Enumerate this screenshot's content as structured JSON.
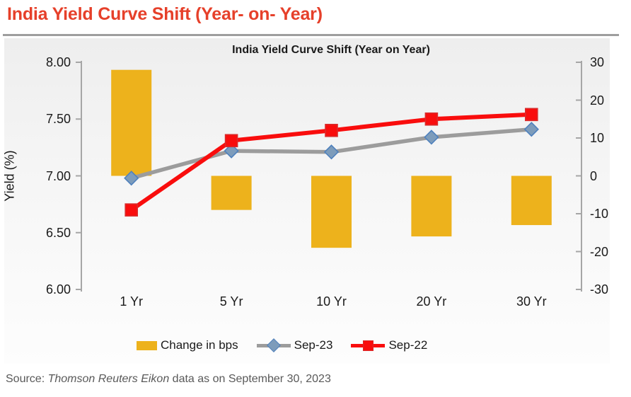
{
  "page": {
    "main_title": "India Yield Curve Shift (Year- on- Year)",
    "source_prefix": "Source: ",
    "source_italic": "Thomson Reuters Eikon",
    "source_suffix": " data as on September 30, 2023"
  },
  "chart_data": {
    "type": "combo_bar_line",
    "title": "India Yield Curve Shift (Year on Year)",
    "categories": [
      "1 Yr",
      "5 Yr",
      "10 Yr",
      "20 Yr",
      "30 Yr"
    ],
    "bar_series": {
      "name": "Change in bps",
      "axis": "right",
      "values": [
        28,
        -9,
        -19,
        -16,
        -13
      ],
      "color": "#EDB21C"
    },
    "series": [
      {
        "name": "Sep-23",
        "axis": "left",
        "values": [
          6.98,
          7.22,
          7.21,
          7.34,
          7.41
        ],
        "color": "#9C9C9C",
        "marker": "diamond",
        "marker_fill": "#7D9CBB",
        "marker_stroke": "#4F81BD"
      },
      {
        "name": "Sep-22",
        "axis": "left",
        "values": [
          6.7,
          7.31,
          7.4,
          7.5,
          7.54
        ],
        "color": "#F90D0D",
        "marker": "square",
        "marker_fill": "#F90D0D",
        "marker_stroke": "#D92B2B"
      }
    ],
    "left_axis": {
      "label": "Yield (%)",
      "min": 6.0,
      "max": 8.0,
      "ticks": [
        "8.00",
        "7.50",
        "7.00",
        "6.50",
        "6.00"
      ]
    },
    "right_axis": {
      "min": -30,
      "max": 30,
      "ticks": [
        "30",
        "20",
        "10",
        "0",
        "-10",
        "-20",
        "-30"
      ]
    },
    "legend_position": "bottom",
    "grid": false,
    "axis_color": "#A6A6A6"
  }
}
